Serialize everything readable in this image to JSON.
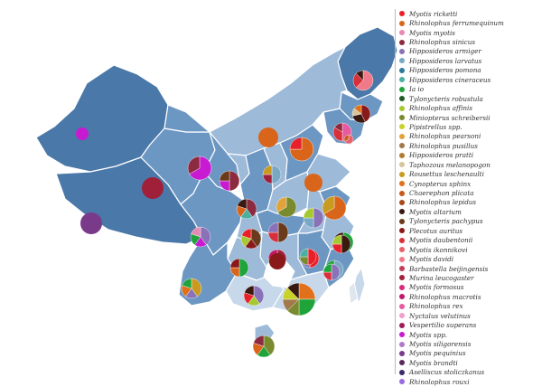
{
  "palette": {
    "region_dark": "#4a78a8",
    "region_mid": "#6d97c3",
    "region_light": "#9dbad9",
    "region_pale": "#c7d8ea",
    "border": "#ffffff"
  },
  "legend": {
    "items": [
      {
        "label": "Myotis ricketti",
        "color": "#e8202a"
      },
      {
        "label": "Rhinolophus ferrumequinum",
        "color": "#d9651a"
      },
      {
        "label": "Myotis myotis",
        "color": "#e58ab0"
      },
      {
        "label": "Rhinolophus sinicus",
        "color": "#8c2a3f"
      },
      {
        "label": "Hipposideros armiger",
        "color": "#8a72b8"
      },
      {
        "label": "Hipposideros larvatus",
        "color": "#7aa8c4"
      },
      {
        "label": "Hipposideros pomona",
        "color": "#2d7a9c"
      },
      {
        "label": "Hipposideros cineraceus",
        "color": "#4ab0a0"
      },
      {
        "label": "Ia io",
        "color": "#1ea43a"
      },
      {
        "label": "Tylonycteris robustula",
        "color": "#1f5a28"
      },
      {
        "label": "Rhinolophus affinis",
        "color": "#a6c830"
      },
      {
        "label": "Miniopterus schreibersii",
        "color": "#7a8a2e"
      },
      {
        "label": "Pipistrellus spp.",
        "color": "#c8d228"
      },
      {
        "label": "Rhinolophus pearsoni",
        "color": "#e0a23a"
      },
      {
        "label": "Rhinolophus pusillus",
        "color": "#a07a4a"
      },
      {
        "label": "Hipposideros pratti",
        "color": "#b07a30"
      },
      {
        "label": "Taphozous melanopogon",
        "color": "#d8c49a"
      },
      {
        "label": "Rousettus leschenaulti",
        "color": "#c89a20"
      },
      {
        "label": "Cynopterus sphinx",
        "color": "#e0701a"
      },
      {
        "label": "Chaerephon plicata",
        "color": "#c85a18"
      },
      {
        "label": "Rhinolophus lepidus",
        "color": "#a84a1a"
      },
      {
        "label": "Myotis altarium",
        "color": "#3a1a10"
      },
      {
        "label": "Tylonycteris pachypus",
        "color": "#6a3a1a"
      },
      {
        "label": "Plecotus auritus",
        "color": "#8a1a1a"
      },
      {
        "label": "Myotis daubentonii",
        "color": "#d8303a"
      },
      {
        "label": "Myotis ikonnikovi",
        "color": "#e8606a"
      },
      {
        "label": "Myotis davidi",
        "color": "#f07a8a"
      },
      {
        "label": "Barbastella beijingensis",
        "color": "#c0405a"
      },
      {
        "label": "Murina leucogaster",
        "color": "#a0203a"
      },
      {
        "label": "Myotis formosus",
        "color": "#d82a7a"
      },
      {
        "label": "Rhinolophus macrotis",
        "color": "#c01a6a"
      },
      {
        "label": "Rhinolophus rex",
        "color": "#e85aa0"
      },
      {
        "label": "Nyctalus velutinus",
        "color": "#f0a0c8"
      },
      {
        "label": "Vespertilio superans",
        "color": "#a01a5a"
      },
      {
        "label": "Myotis spp.",
        "color": "#c81ad0"
      },
      {
        "label": "Myotis siligorensis",
        "color": "#b07ac8"
      },
      {
        "label": "Myotis pequinius",
        "color": "#7a3a8a"
      },
      {
        "label": "Myotis brandti",
        "color": "#5a2a5a"
      },
      {
        "label": "Aselliscus stoliczkanus",
        "color": "#3a2a6a"
      },
      {
        "label": "Rhinolophus rouxi",
        "color": "#9a6ae0"
      }
    ]
  },
  "provinces": [
    {
      "name": "Heilongjiang",
      "fill": "region_dark"
    },
    {
      "name": "Jilin",
      "fill": "region_mid"
    },
    {
      "name": "Liaoning",
      "fill": "region_mid"
    },
    {
      "name": "Inner Mongolia",
      "fill": "region_light"
    },
    {
      "name": "Xinjiang",
      "fill": "region_dark"
    },
    {
      "name": "Tibet",
      "fill": "region_dark"
    },
    {
      "name": "Qinghai",
      "fill": "region_mid"
    },
    {
      "name": "Gansu",
      "fill": "region_mid"
    },
    {
      "name": "Ningxia",
      "fill": "region_light"
    },
    {
      "name": "Shaanxi",
      "fill": "region_mid"
    },
    {
      "name": "Shanxi",
      "fill": "region_light"
    },
    {
      "name": "Hebei",
      "fill": "region_mid"
    },
    {
      "name": "Shandong",
      "fill": "region_light"
    },
    {
      "name": "Henan",
      "fill": "region_light"
    },
    {
      "name": "Sichuan",
      "fill": "region_mid"
    },
    {
      "name": "Chongqing",
      "fill": "region_light"
    },
    {
      "name": "Hubei",
      "fill": "region_mid"
    },
    {
      "name": "Anhui",
      "fill": "region_light"
    },
    {
      "name": "Jiangsu",
      "fill": "region_mid"
    },
    {
      "name": "Zhejiang",
      "fill": "region_light"
    },
    {
      "name": "Jiangxi",
      "fill": "region_mid"
    },
    {
      "name": "Hunan",
      "fill": "region_light"
    },
    {
      "name": "Guizhou",
      "fill": "region_light"
    },
    {
      "name": "Yunnan",
      "fill": "region_mid"
    },
    {
      "name": "Guangxi",
      "fill": "region_pale"
    },
    {
      "name": "Guangdong",
      "fill": "region_pale"
    },
    {
      "name": "Fujian",
      "fill": "region_mid"
    },
    {
      "name": "Taiwan",
      "fill": "region_pale"
    },
    {
      "name": "Hainan",
      "fill": "region_light"
    }
  ],
  "pies": [
    {
      "site": "heilongjiang-north",
      "shares": [
        {
          "c": "#f07a8a",
          "v": 5
        },
        {
          "c": "#d8303a",
          "v": 2
        },
        {
          "c": "#3a1a10",
          "v": 1
        }
      ]
    },
    {
      "site": "heilongjiang-south",
      "shares": [
        {
          "c": "#8a1a1a",
          "v": 3
        },
        {
          "c": "#3a1a10",
          "v": 2
        },
        {
          "c": "#d8c49a",
          "v": 1
        },
        {
          "c": "#e0701a",
          "v": 1
        }
      ]
    },
    {
      "site": "jilin",
      "shares": [
        {
          "c": "#e85aa0",
          "v": 3
        },
        {
          "c": "#d8303a",
          "v": 2
        },
        {
          "c": "#8c2a3f",
          "v": 1
        }
      ]
    },
    {
      "site": "liaoning",
      "shares": [
        {
          "c": "#e8606a",
          "v": 2
        },
        {
          "c": "#c85a18",
          "v": 1
        }
      ]
    },
    {
      "site": "inner-mongolia",
      "shares": [
        {
          "c": "#d9651a",
          "v": 1
        }
      ]
    },
    {
      "site": "beijing",
      "shares": [
        {
          "c": "#d9651a",
          "v": 3
        },
        {
          "c": "#e8202a",
          "v": 1
        }
      ]
    },
    {
      "site": "shandong",
      "shares": [
        {
          "c": "#d9651a",
          "v": 1
        }
      ]
    },
    {
      "site": "shanxi",
      "shares": [
        {
          "c": "#7aa8c4",
          "v": 2
        },
        {
          "c": "#a0203a",
          "v": 1
        },
        {
          "c": "#c89a20",
          "v": 1
        }
      ]
    },
    {
      "site": "ningxia",
      "shares": [
        {
          "c": "#8c2a3f",
          "v": 2
        },
        {
          "c": "#c81ad0",
          "v": 1
        },
        {
          "c": "#6a3a1a",
          "v": 1
        }
      ]
    },
    {
      "site": "gansu",
      "shares": [
        {
          "c": "#c81ad0",
          "v": 2
        },
        {
          "c": "#8c2a3f",
          "v": 1
        }
      ]
    },
    {
      "site": "xinjiang-north",
      "shares": [
        {
          "c": "#c81ad0",
          "v": 1
        }
      ]
    },
    {
      "site": "qinghai",
      "shares": [
        {
          "c": "#a0203a",
          "v": 1
        }
      ]
    },
    {
      "site": "tibet",
      "shares": [
        {
          "c": "#7a3a8a",
          "v": 1
        }
      ]
    },
    {
      "site": "henan",
      "shares": [
        {
          "c": "#7a8a2e",
          "v": 2
        },
        {
          "c": "#e0a23a",
          "v": 1
        }
      ]
    },
    {
      "site": "shaanxi",
      "shares": [
        {
          "c": "#8c2a3f",
          "v": 2
        },
        {
          "c": "#4ab0a0",
          "v": 1
        },
        {
          "c": "#d9651a",
          "v": 1
        },
        {
          "c": "#3a1a10",
          "v": 1
        }
      ]
    },
    {
      "site": "anhui",
      "shares": [
        {
          "c": "#8a72b8",
          "v": 2
        },
        {
          "c": "#7aa8c4",
          "v": 1
        },
        {
          "c": "#a6c830",
          "v": 1
        }
      ]
    },
    {
      "site": "jiangsu",
      "shares": [
        {
          "c": "#d9651a",
          "v": 2
        },
        {
          "c": "#c89a20",
          "v": 1
        }
      ]
    },
    {
      "site": "zhejiang",
      "shares": [
        {
          "c": "#1ea43a",
          "v": 2
        },
        {
          "c": "#c8d228",
          "v": 1
        },
        {
          "c": "#3a1a10",
          "v": 1
        }
      ]
    },
    {
      "site": "hubei",
      "shares": [
        {
          "c": "#6a3a1a",
          "v": 2
        },
        {
          "c": "#d8303a",
          "v": 1
        },
        {
          "c": "#8a72b8",
          "v": 1
        }
      ]
    },
    {
      "site": "chongqing",
      "shares": [
        {
          "c": "#6a3a1a",
          "v": 2
        },
        {
          "c": "#8a1a1a",
          "v": 1
        },
        {
          "c": "#a6c830",
          "v": 1
        },
        {
          "c": "#e8202a",
          "v": 1
        }
      ]
    },
    {
      "site": "sichuan",
      "shares": [
        {
          "c": "#8a72b8",
          "v": 2
        },
        {
          "c": "#c81ad0",
          "v": 1
        },
        {
          "c": "#1ea43a",
          "v": 1
        },
        {
          "c": "#e58ab0",
          "v": 1
        }
      ]
    },
    {
      "site": "hunan",
      "shares": [
        {
          "c": "#a0203a",
          "v": 2
        },
        {
          "c": "#7a8a2e",
          "v": 1
        },
        {
          "c": "#c01a6a",
          "v": 1
        }
      ]
    },
    {
      "site": "jiangxi",
      "shares": [
        {
          "c": "#e8202a",
          "v": 2
        },
        {
          "c": "#8a72b8",
          "v": 1
        },
        {
          "c": "#7aa8c4",
          "v": 1
        }
      ]
    },
    {
      "site": "fujian-north",
      "shares": [
        {
          "c": "#3a1a10",
          "v": 2
        },
        {
          "c": "#e8202a",
          "v": 1
        },
        {
          "c": "#a6c830",
          "v": 1
        }
      ]
    },
    {
      "site": "fujian-south",
      "shares": [
        {
          "c": "#7aa8c4",
          "v": 2
        },
        {
          "c": "#e85aa0",
          "v": 1
        },
        {
          "c": "#1ea43a",
          "v": 1
        }
      ]
    },
    {
      "site": "guizhou",
      "shares": [
        {
          "c": "#8a1a1a",
          "v": 1
        }
      ]
    },
    {
      "site": "guangdong-north",
      "shares": [
        {
          "c": "#e8202a",
          "v": 2
        },
        {
          "c": "#7a8a2e",
          "v": 1
        },
        {
          "c": "#4ab0a0",
          "v": 1
        }
      ]
    },
    {
      "site": "guangdong-coast",
      "shares": [
        {
          "c": "#8a72b8",
          "v": 2
        },
        {
          "c": "#d8303a",
          "v": 1
        },
        {
          "c": "#1ea43a",
          "v": 1
        }
      ]
    },
    {
      "site": "yunnan-central",
      "shares": [
        {
          "c": "#1ea43a",
          "v": 2
        },
        {
          "c": "#d9651a",
          "v": 1
        },
        {
          "c": "#8a1a1a",
          "v": 1
        }
      ]
    },
    {
      "site": "yunnan-south",
      "shares": [
        {
          "c": "#c89a20",
          "v": 2
        },
        {
          "c": "#8a72b8",
          "v": 1
        },
        {
          "c": "#e0701a",
          "v": 1
        },
        {
          "c": "#1ea43a",
          "v": 1
        }
      ]
    },
    {
      "site": "guangxi",
      "shares": [
        {
          "c": "#8a72b8",
          "v": 2
        },
        {
          "c": "#a6c830",
          "v": 1
        },
        {
          "c": "#e8202a",
          "v": 1
        },
        {
          "c": "#3a1a10",
          "v": 1
        }
      ]
    },
    {
      "site": "guangdong-large",
      "shares": [
        {
          "c": "#e0701a",
          "v": 2
        },
        {
          "c": "#1ea43a",
          "v": 2
        },
        {
          "c": "#7a8a2e",
          "v": 1
        },
        {
          "c": "#a07a4a",
          "v": 1
        },
        {
          "c": "#c8d228",
          "v": 1
        },
        {
          "c": "#3a1a10",
          "v": 1
        }
      ]
    },
    {
      "site": "hainan",
      "shares": [
        {
          "c": "#7a8a2e",
          "v": 2
        },
        {
          "c": "#1ea43a",
          "v": 1
        },
        {
          "c": "#d9651a",
          "v": 1
        },
        {
          "c": "#8c2a3f",
          "v": 1
        }
      ]
    }
  ]
}
